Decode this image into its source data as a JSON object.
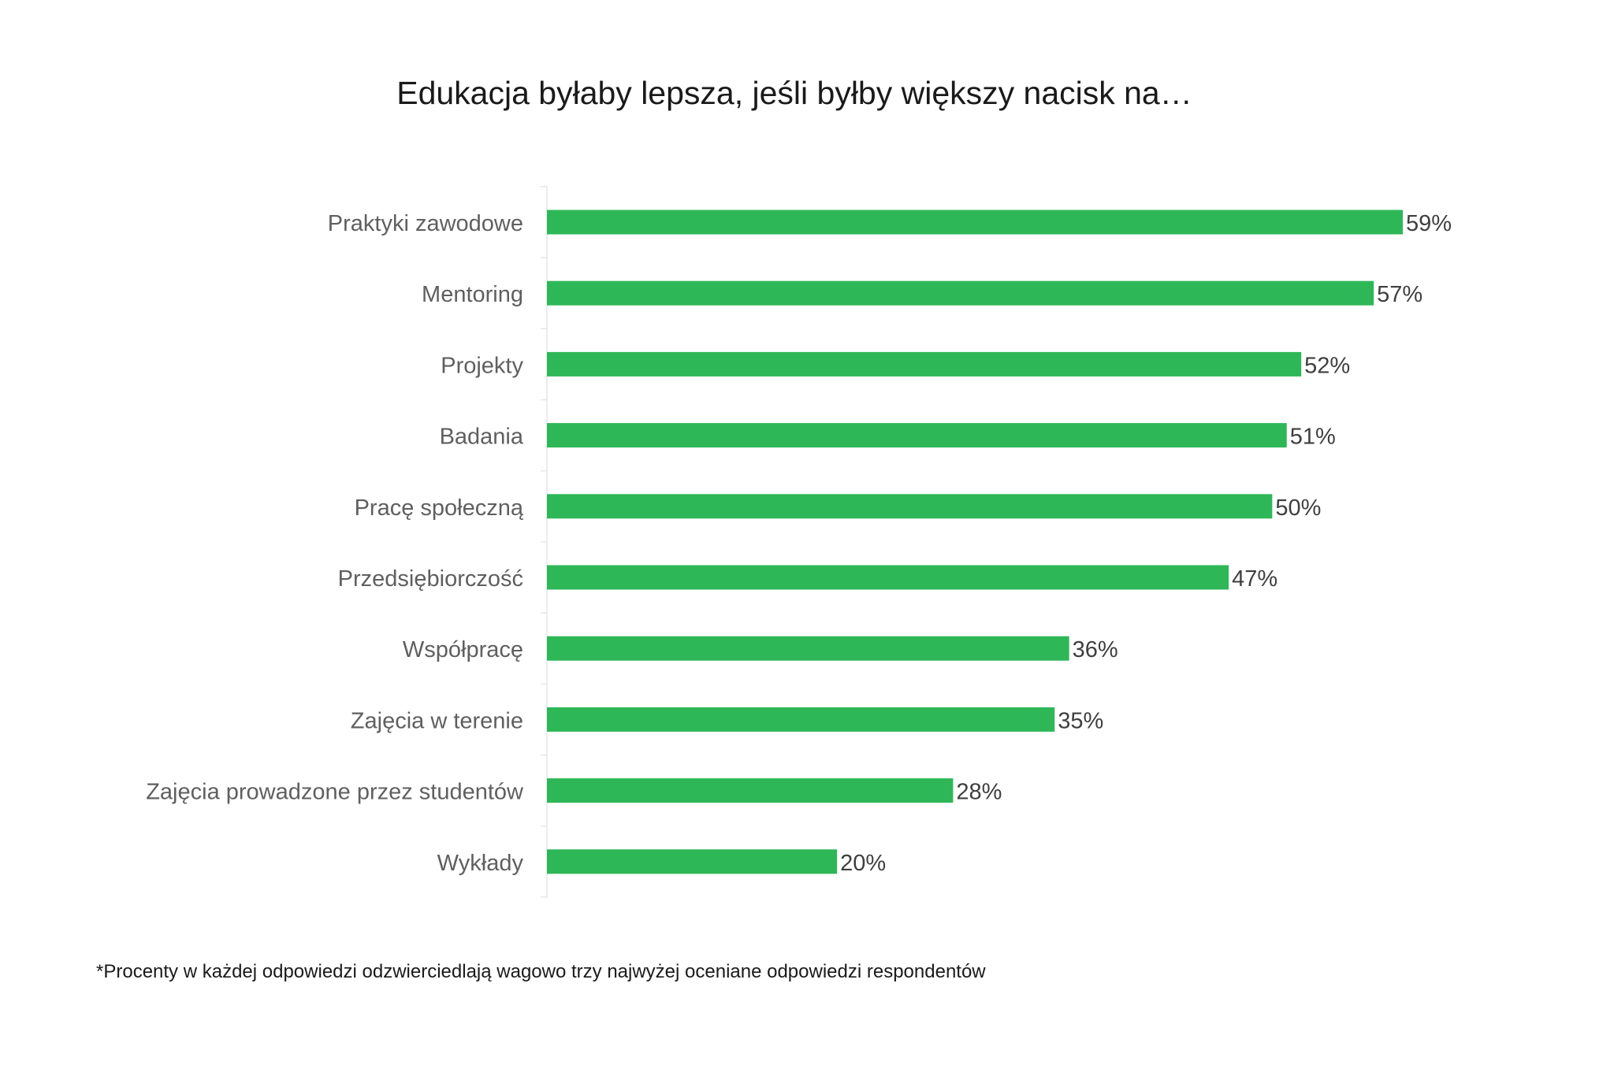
{
  "chart_data": {
    "type": "bar",
    "orientation": "horizontal",
    "title": "Edukacja byłaby lepsza, jeśli byłby większy nacisk na…",
    "categories": [
      "Praktyki zawodowe",
      "Mentoring",
      "Projekty",
      "Badania",
      "Pracę społeczną",
      "Przedsiębiorczość",
      "Współpracę",
      "Zajęcia w terenie",
      "Zajęcia prowadzone przez studentów",
      "Wykłady"
    ],
    "values": [
      59,
      57,
      52,
      51,
      50,
      47,
      36,
      35,
      28,
      20
    ],
    "value_labels": [
      "59%",
      "57%",
      "52%",
      "51%",
      "50%",
      "47%",
      "36%",
      "35%",
      "28%",
      "20%"
    ],
    "unit": "%",
    "xlim": [
      0,
      59
    ],
    "grid": false,
    "legend": "none",
    "colors": {
      "bar": "#2eb757",
      "axis": "#e6e6e6",
      "category_text": "#5f5f5f",
      "value_text": "#3f3f3f",
      "title_text": "#1a1a1a"
    }
  },
  "footnote": "*Procenty w każdej odpowiedzi odzwierciedlają wagowo trzy najwyżej oceniane odpowiedzi respondentów"
}
